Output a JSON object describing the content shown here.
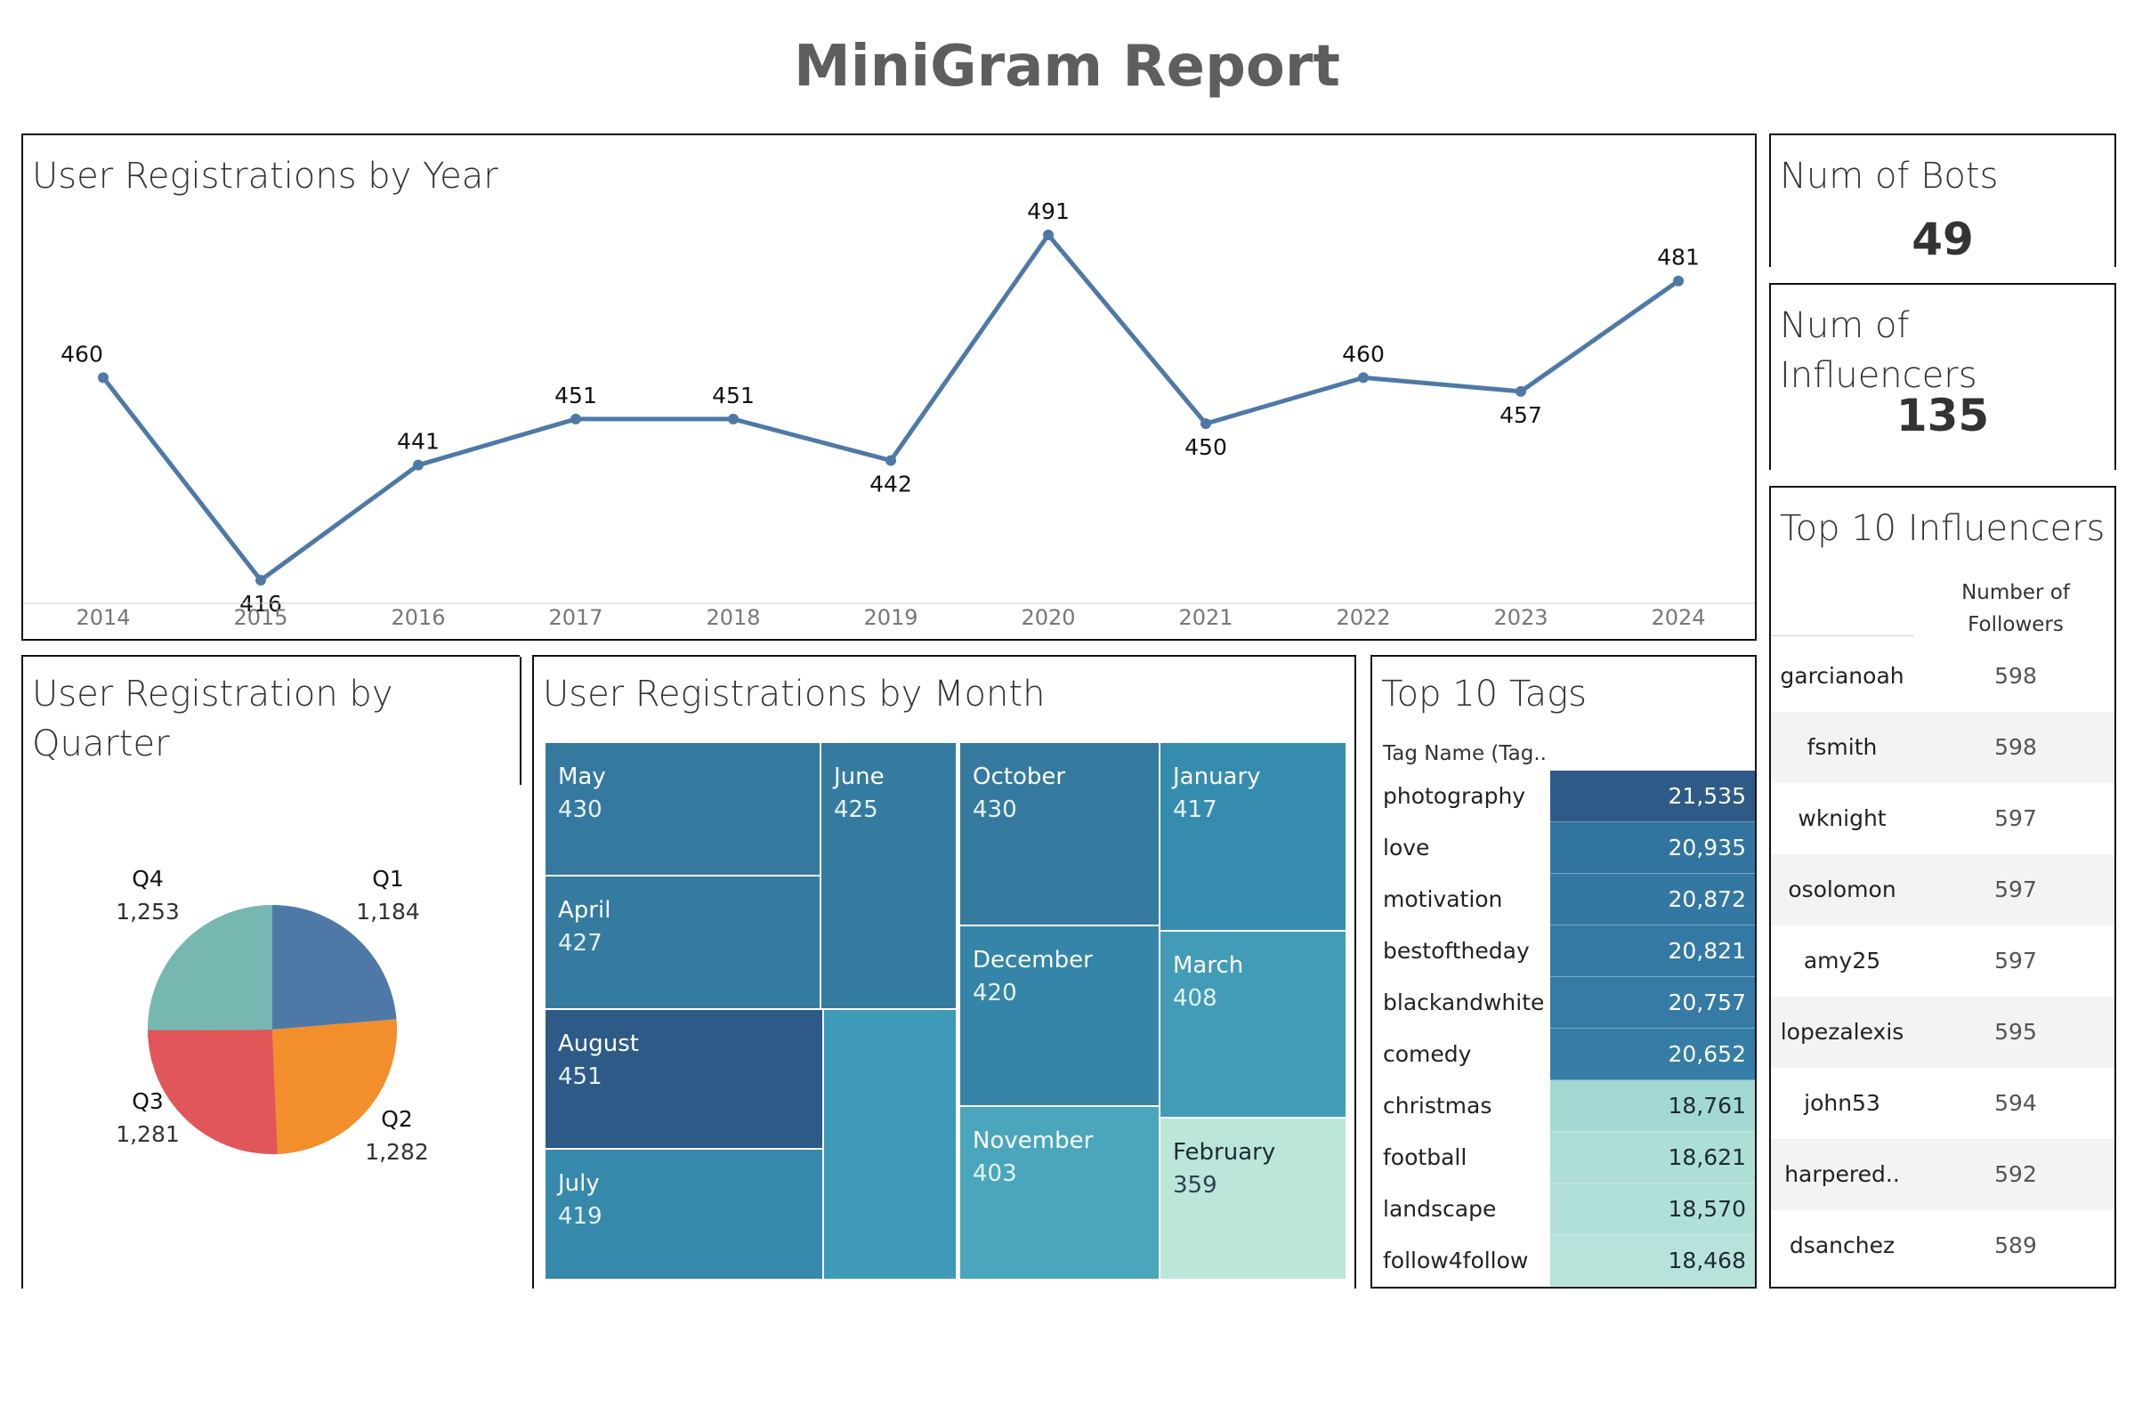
{
  "report_title": "MiniGram Report",
  "colors": {
    "line": "#4e79a7",
    "treemap_dark": "#2e5a87",
    "treemap_mid": "#357ea2",
    "treemap_light": "#bfe6da"
  },
  "yearly": {
    "title": "User Registrations by Year",
    "chart_data": {
      "type": "line",
      "x": [
        "2014",
        "2015",
        "2016",
        "2017",
        "2018",
        "2019",
        "2020",
        "2021",
        "2022",
        "2023",
        "2024"
      ],
      "values": [
        460,
        416,
        441,
        451,
        451,
        442,
        491,
        450,
        460,
        457,
        481
      ],
      "ylim": [
        416,
        491
      ]
    }
  },
  "kpi_bots": {
    "label": "Num of Bots",
    "value": "49"
  },
  "kpi_influencers": {
    "label": "Num of Influencers",
    "value": "135"
  },
  "quarter": {
    "title_line1": "User Registration by",
    "title_line2": "Quarter",
    "chart_data": {
      "type": "pie",
      "labels": [
        "Q1",
        "Q2",
        "Q3",
        "Q4"
      ],
      "values": [
        1184,
        1282,
        1281,
        1253
      ],
      "value_labels": [
        "1,184",
        "1,282",
        "1,281",
        "1,253"
      ],
      "colors": [
        "#4e79a7",
        "#f28e2b",
        "#e15759",
        "#76b7b2"
      ]
    }
  },
  "month": {
    "title": "User Registrations by Month",
    "chart_data": {
      "type": "heatmap",
      "cells": [
        {
          "name": "May",
          "value": "430",
          "color": "#357a9e"
        },
        {
          "name": "June",
          "value": "425",
          "color": "#357b9f"
        },
        {
          "name": "April",
          "value": "427",
          "color": "#357b9f"
        },
        {
          "name": "August",
          "value": "451",
          "color": "#2e5a87"
        },
        {
          "name": "July",
          "value": "419",
          "color": "#3689aa"
        },
        {
          "name": "",
          "value": "",
          "color": "#3e9ab6"
        },
        {
          "name": "October",
          "value": "430",
          "color": "#357a9e"
        },
        {
          "name": "December",
          "value": "420",
          "color": "#3585a8"
        },
        {
          "name": "November",
          "value": "403",
          "color": "#4aa6bc"
        },
        {
          "name": "January",
          "value": "417",
          "color": "#368cae"
        },
        {
          "name": "March",
          "value": "408",
          "color": "#429cb8"
        },
        {
          "name": "February",
          "value": "359",
          "color": "#bde6da"
        }
      ]
    }
  },
  "tags": {
    "title": "Top 10 Tags",
    "column_header": "Tag Name (Tag..",
    "chart_data": {
      "type": "table",
      "rows": [
        {
          "tag": "photography",
          "count": "21,535",
          "color": "#2e5a87"
        },
        {
          "tag": "love",
          "count": "20,935",
          "color": "#3274a0"
        },
        {
          "tag": "motivation",
          "count": "20,872",
          "color": "#3378a2"
        },
        {
          "tag": "bestoftheday",
          "count": "20,821",
          "color": "#3479a3"
        },
        {
          "tag": "blackandwhite",
          "count": "20,757",
          "color": "#357ba5"
        },
        {
          "tag": "comedy",
          "count": "20,652",
          "color": "#357da6"
        },
        {
          "tag": "christmas",
          "count": "18,761",
          "color": "#a2d9d3"
        },
        {
          "tag": "football",
          "count": "18,621",
          "color": "#addfd6"
        },
        {
          "tag": "landscape",
          "count": "18,570",
          "color": "#b1e0d8"
        },
        {
          "tag": "follow4follow",
          "count": "18,468",
          "color": "#b8e3da"
        }
      ]
    }
  },
  "influencers": {
    "title": "Top 10 Influencers",
    "col_line1": "Number of",
    "col_line2": "Followers",
    "rows": [
      {
        "name": "garcianoah",
        "followers": "598"
      },
      {
        "name": "fsmith",
        "followers": "598"
      },
      {
        "name": "wknight",
        "followers": "597"
      },
      {
        "name": "osolomon",
        "followers": "597"
      },
      {
        "name": "amy25",
        "followers": "597"
      },
      {
        "name": "lopezalexis",
        "followers": "595"
      },
      {
        "name": "john53",
        "followers": "594"
      },
      {
        "name": "harpered..",
        "followers": "592"
      },
      {
        "name": "dsanchez",
        "followers": "589"
      }
    ]
  }
}
